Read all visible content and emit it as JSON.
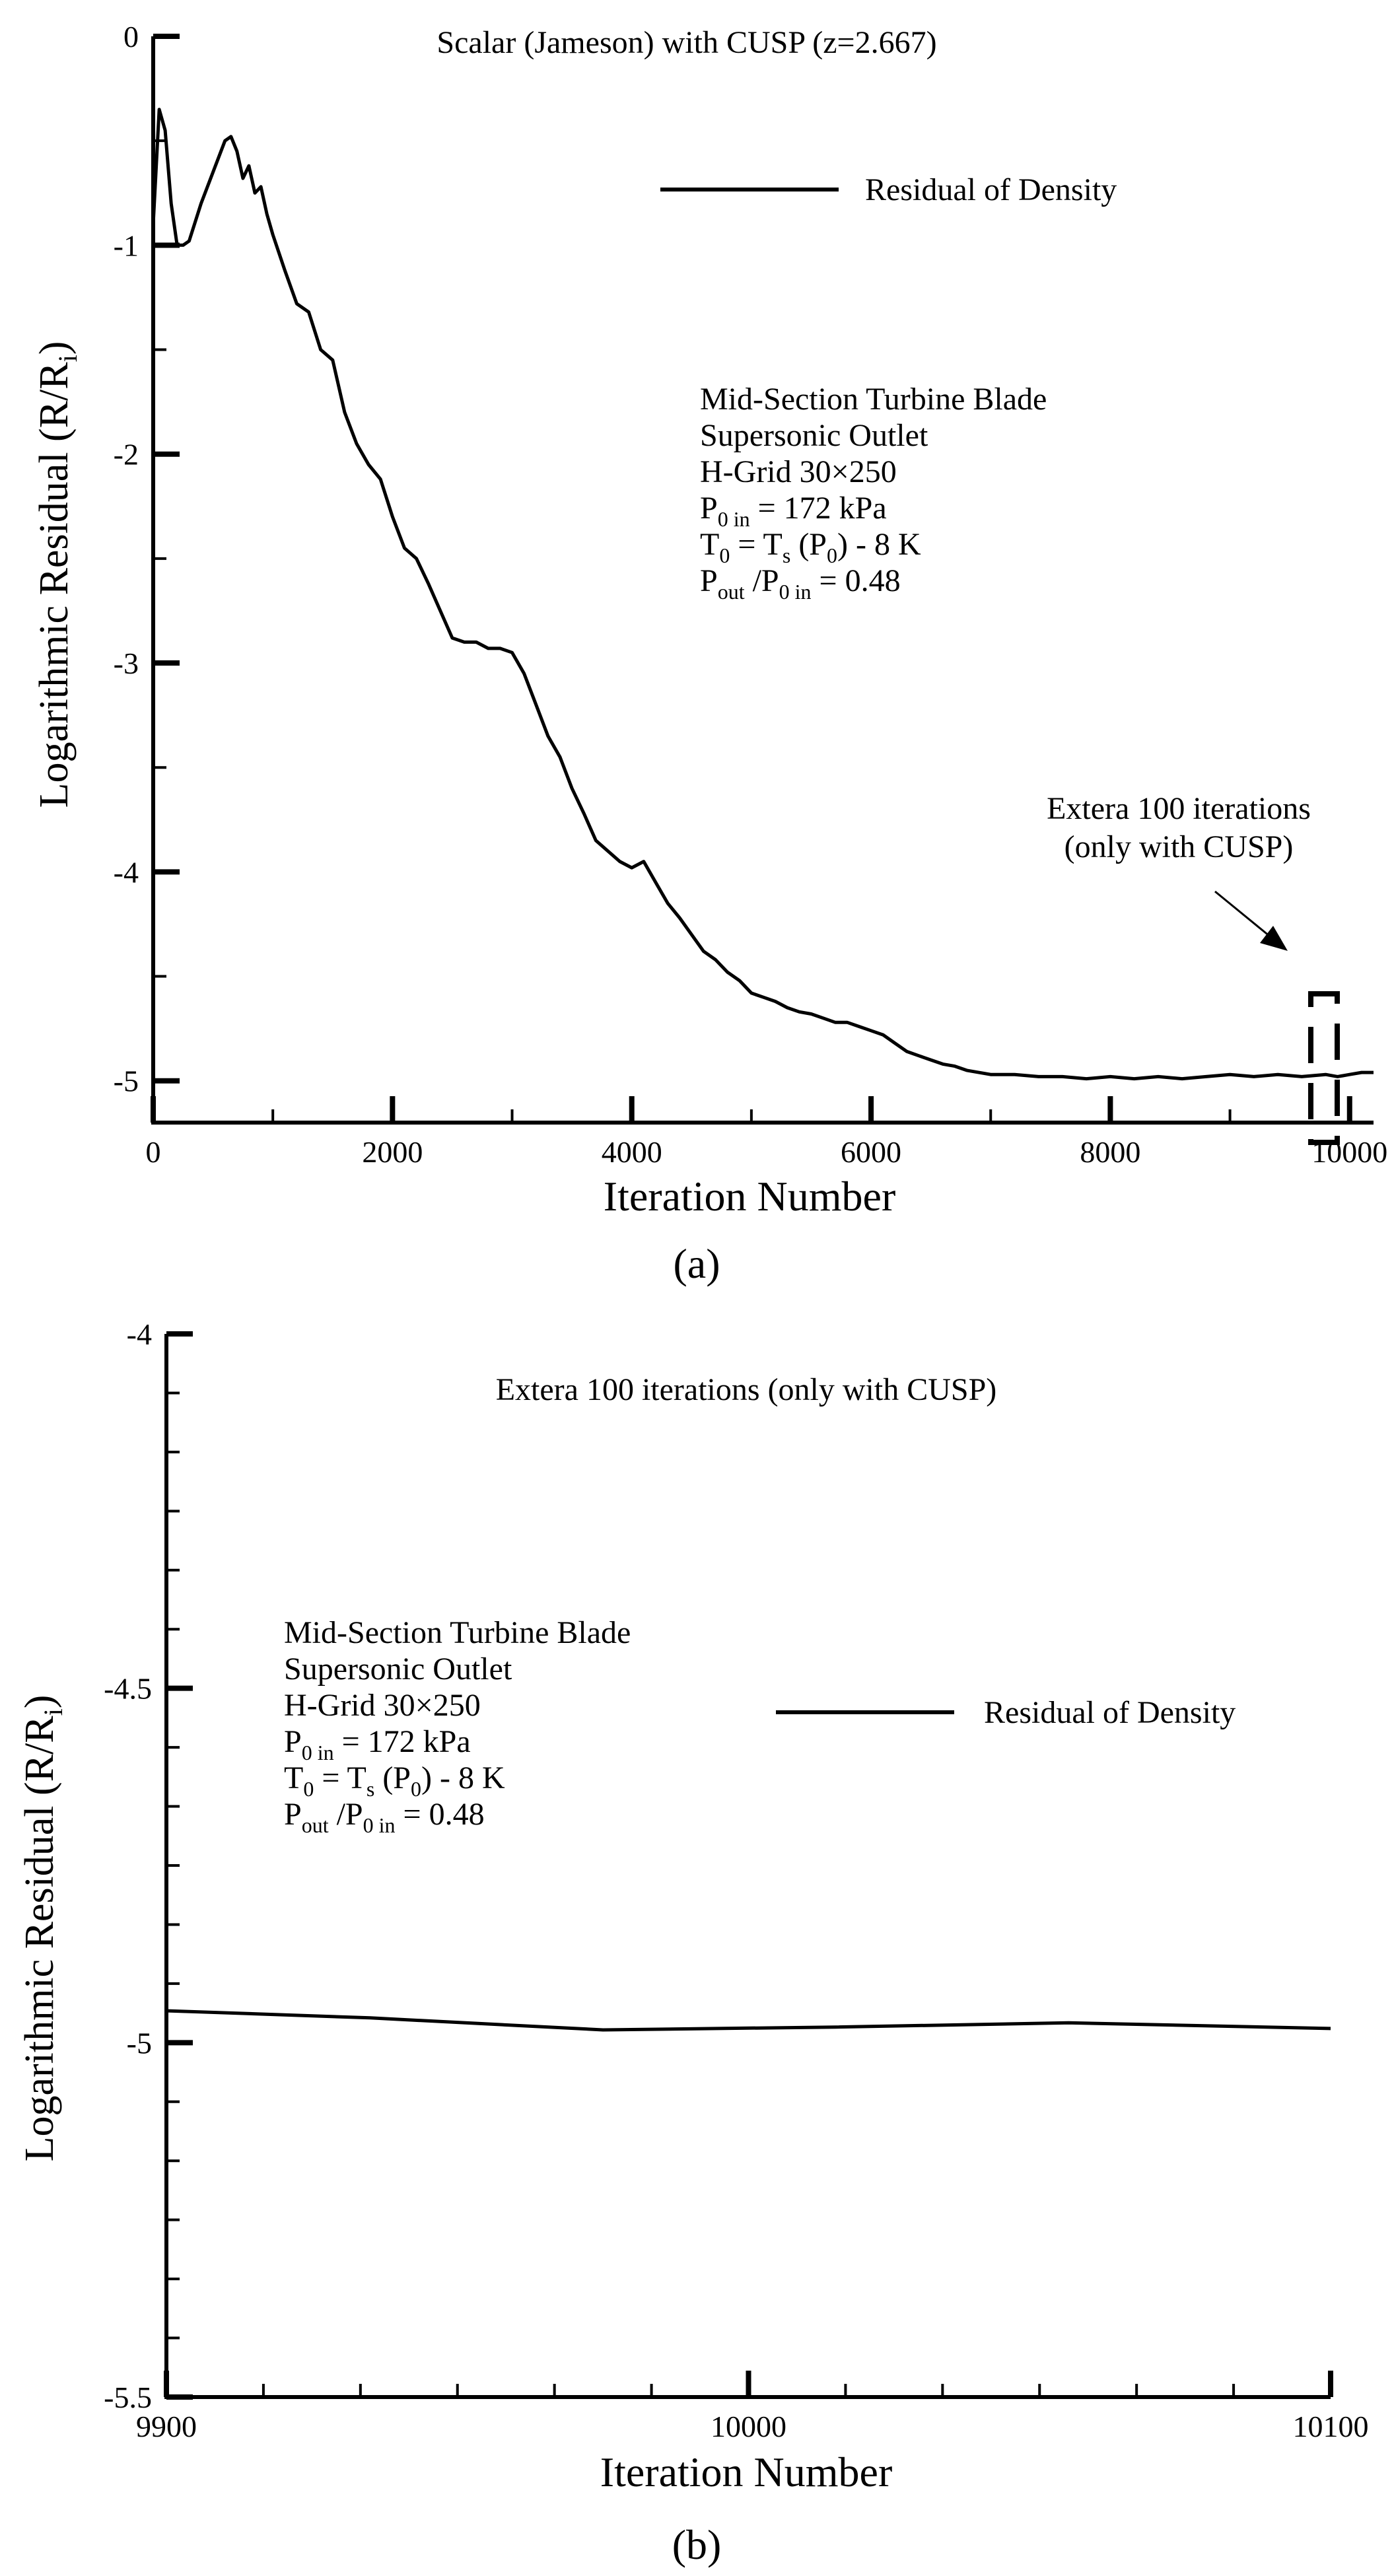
{
  "chart_data": [
    {
      "panel_label": "(a)",
      "type": "line",
      "title": "Scalar (Jameson) with CUSP (z=2.667)",
      "xlabel": "Iteration Number",
      "ylabel": "Logarithmic Residual (R/Ri)",
      "ylabel_parts": {
        "main": "Logarithmic Residual (R/R",
        "sub": "i",
        "close": ")"
      },
      "xlim": [
        0,
        10200
      ],
      "ylim": [
        -5.2,
        0
      ],
      "x_ticks": [
        0,
        2000,
        4000,
        6000,
        8000,
        10000
      ],
      "x_tick_labels": [
        "0",
        "2000",
        "4000",
        "6000",
        "8000",
        "10000"
      ],
      "y_ticks": [
        0,
        -1,
        -2,
        -3,
        -4,
        -5
      ],
      "y_tick_labels": [
        "0",
        "-1",
        "-2",
        "-3",
        "-4",
        "-5"
      ],
      "legend": {
        "label": "Residual of Density",
        "position": "top-right"
      },
      "annotation_lines": [
        {
          "parts": [
            [
              "Mid-Section Turbine Blade",
              "n"
            ]
          ]
        },
        {
          "parts": [
            [
              "Supersonic Outlet",
              "n"
            ]
          ]
        },
        {
          "parts": [
            [
              "H-Grid 30×250",
              "n"
            ]
          ]
        },
        {
          "parts": [
            [
              "P",
              "n"
            ],
            [
              "0 in",
              "sub"
            ],
            [
              " = 172 kPa",
              "n"
            ]
          ]
        },
        {
          "parts": [
            [
              "T",
              "n"
            ],
            [
              "0",
              "sub"
            ],
            [
              " = T",
              "n"
            ],
            [
              "s",
              "sub"
            ],
            [
              " (P",
              "n"
            ],
            [
              "0",
              "sub"
            ],
            [
              ") - 8 K",
              "n"
            ]
          ]
        },
        {
          "parts": [
            [
              "P",
              "n"
            ],
            [
              "out",
              "sub"
            ],
            [
              " /P",
              "n"
            ],
            [
              "0 in",
              "sub"
            ],
            [
              " = 0.48",
              "n"
            ]
          ]
        }
      ],
      "callout": {
        "lines": [
          "Extera 100 iterations",
          "(only with CUSP)"
        ]
      },
      "series": [
        {
          "name": "Residual of Density",
          "x": [
            0,
            50,
            100,
            150,
            200,
            250,
            300,
            400,
            500,
            600,
            650,
            700,
            750,
            800,
            850,
            900,
            950,
            1000,
            1100,
            1200,
            1300,
            1400,
            1500,
            1600,
            1700,
            1800,
            1900,
            2000,
            2100,
            2200,
            2300,
            2400,
            2500,
            2600,
            2700,
            2800,
            2900,
            3000,
            3100,
            3200,
            3300,
            3400,
            3500,
            3600,
            3700,
            3800,
            3900,
            4000,
            4100,
            4200,
            4300,
            4400,
            4500,
            4600,
            4700,
            4800,
            4900,
            5000,
            5100,
            5200,
            5300,
            5400,
            5500,
            5600,
            5700,
            5800,
            5900,
            6000,
            6100,
            6200,
            6300,
            6400,
            6500,
            6600,
            6700,
            6800,
            6900,
            7000,
            7200,
            7400,
            7600,
            7800,
            8000,
            8200,
            8400,
            8600,
            8800,
            9000,
            9200,
            9400,
            9600,
            9800,
            9900,
            10000,
            10100,
            10200
          ],
          "values": [
            -0.9,
            -0.35,
            -0.45,
            -0.8,
            -1.0,
            -1.0,
            -0.98,
            -0.8,
            -0.65,
            -0.5,
            -0.48,
            -0.55,
            -0.68,
            -0.62,
            -0.75,
            -0.72,
            -0.85,
            -0.95,
            -1.12,
            -1.28,
            -1.32,
            -1.5,
            -1.55,
            -1.8,
            -1.95,
            -2.05,
            -2.12,
            -2.3,
            -2.45,
            -2.5,
            -2.62,
            -2.75,
            -2.88,
            -2.9,
            -2.9,
            -2.93,
            -2.93,
            -2.95,
            -3.05,
            -3.2,
            -3.35,
            -3.45,
            -3.6,
            -3.72,
            -3.85,
            -3.9,
            -3.95,
            -3.98,
            -3.95,
            -4.05,
            -4.15,
            -4.22,
            -4.3,
            -4.38,
            -4.42,
            -4.48,
            -4.52,
            -4.58,
            -4.6,
            -4.62,
            -4.65,
            -4.67,
            -4.68,
            -4.7,
            -4.72,
            -4.72,
            -4.74,
            -4.76,
            -4.78,
            -4.82,
            -4.86,
            -4.88,
            -4.9,
            -4.92,
            -4.93,
            -4.95,
            -4.96,
            -4.97,
            -4.97,
            -4.98,
            -4.98,
            -4.99,
            -4.98,
            -4.99,
            -4.98,
            -4.99,
            -4.98,
            -4.97,
            -4.98,
            -4.97,
            -4.98,
            -4.97,
            -4.98,
            -4.97,
            -4.96,
            -4.96
          ]
        }
      ]
    },
    {
      "panel_label": "(b)",
      "type": "line",
      "title": "Extera 100 iterations (only with CUSP)",
      "xlabel": "Iteration Number",
      "ylabel": "Logarithmic Residual (R/Ri)",
      "ylabel_parts": {
        "main": "Logarithmic Residual (R/R",
        "sub": "i",
        "close": ")"
      },
      "xlim": [
        9900,
        10100
      ],
      "ylim": [
        -5.5,
        -4
      ],
      "x_ticks": [
        9900,
        10000,
        10100
      ],
      "x_tick_labels": [
        "9900",
        "10000",
        "10100"
      ],
      "y_ticks": [
        -4,
        -4.5,
        -5,
        -5.5
      ],
      "y_tick_labels": [
        "-4",
        "-4.5",
        "-5",
        "-5.5"
      ],
      "legend": {
        "label": "Residual of Density",
        "position": "right"
      },
      "annotation_lines": [
        {
          "parts": [
            [
              "Mid-Section Turbine Blade",
              "n"
            ]
          ]
        },
        {
          "parts": [
            [
              "Supersonic Outlet",
              "n"
            ]
          ]
        },
        {
          "parts": [
            [
              "H-Grid 30×250",
              "n"
            ]
          ]
        },
        {
          "parts": [
            [
              "P",
              "n"
            ],
            [
              "0 in",
              "sub"
            ],
            [
              " = 172 kPa",
              "n"
            ]
          ]
        },
        {
          "parts": [
            [
              "T",
              "n"
            ],
            [
              "0",
              "sub"
            ],
            [
              " = T",
              "n"
            ],
            [
              "s",
              "sub"
            ],
            [
              " (P",
              "n"
            ],
            [
              "0",
              "sub"
            ],
            [
              ") - 8 K",
              "n"
            ]
          ]
        },
        {
          "parts": [
            [
              "P",
              "n"
            ],
            [
              "out",
              "sub"
            ],
            [
              " /P",
              "n"
            ],
            [
              "0 in",
              "sub"
            ],
            [
              " = 0.48",
              "n"
            ]
          ]
        }
      ],
      "series": [
        {
          "name": "Residual of Density",
          "x": [
            9900,
            9935,
            9975,
            10015,
            10055,
            10100
          ],
          "values": [
            -4.955,
            -4.965,
            -4.982,
            -4.978,
            -4.972,
            -4.98
          ]
        }
      ]
    }
  ]
}
